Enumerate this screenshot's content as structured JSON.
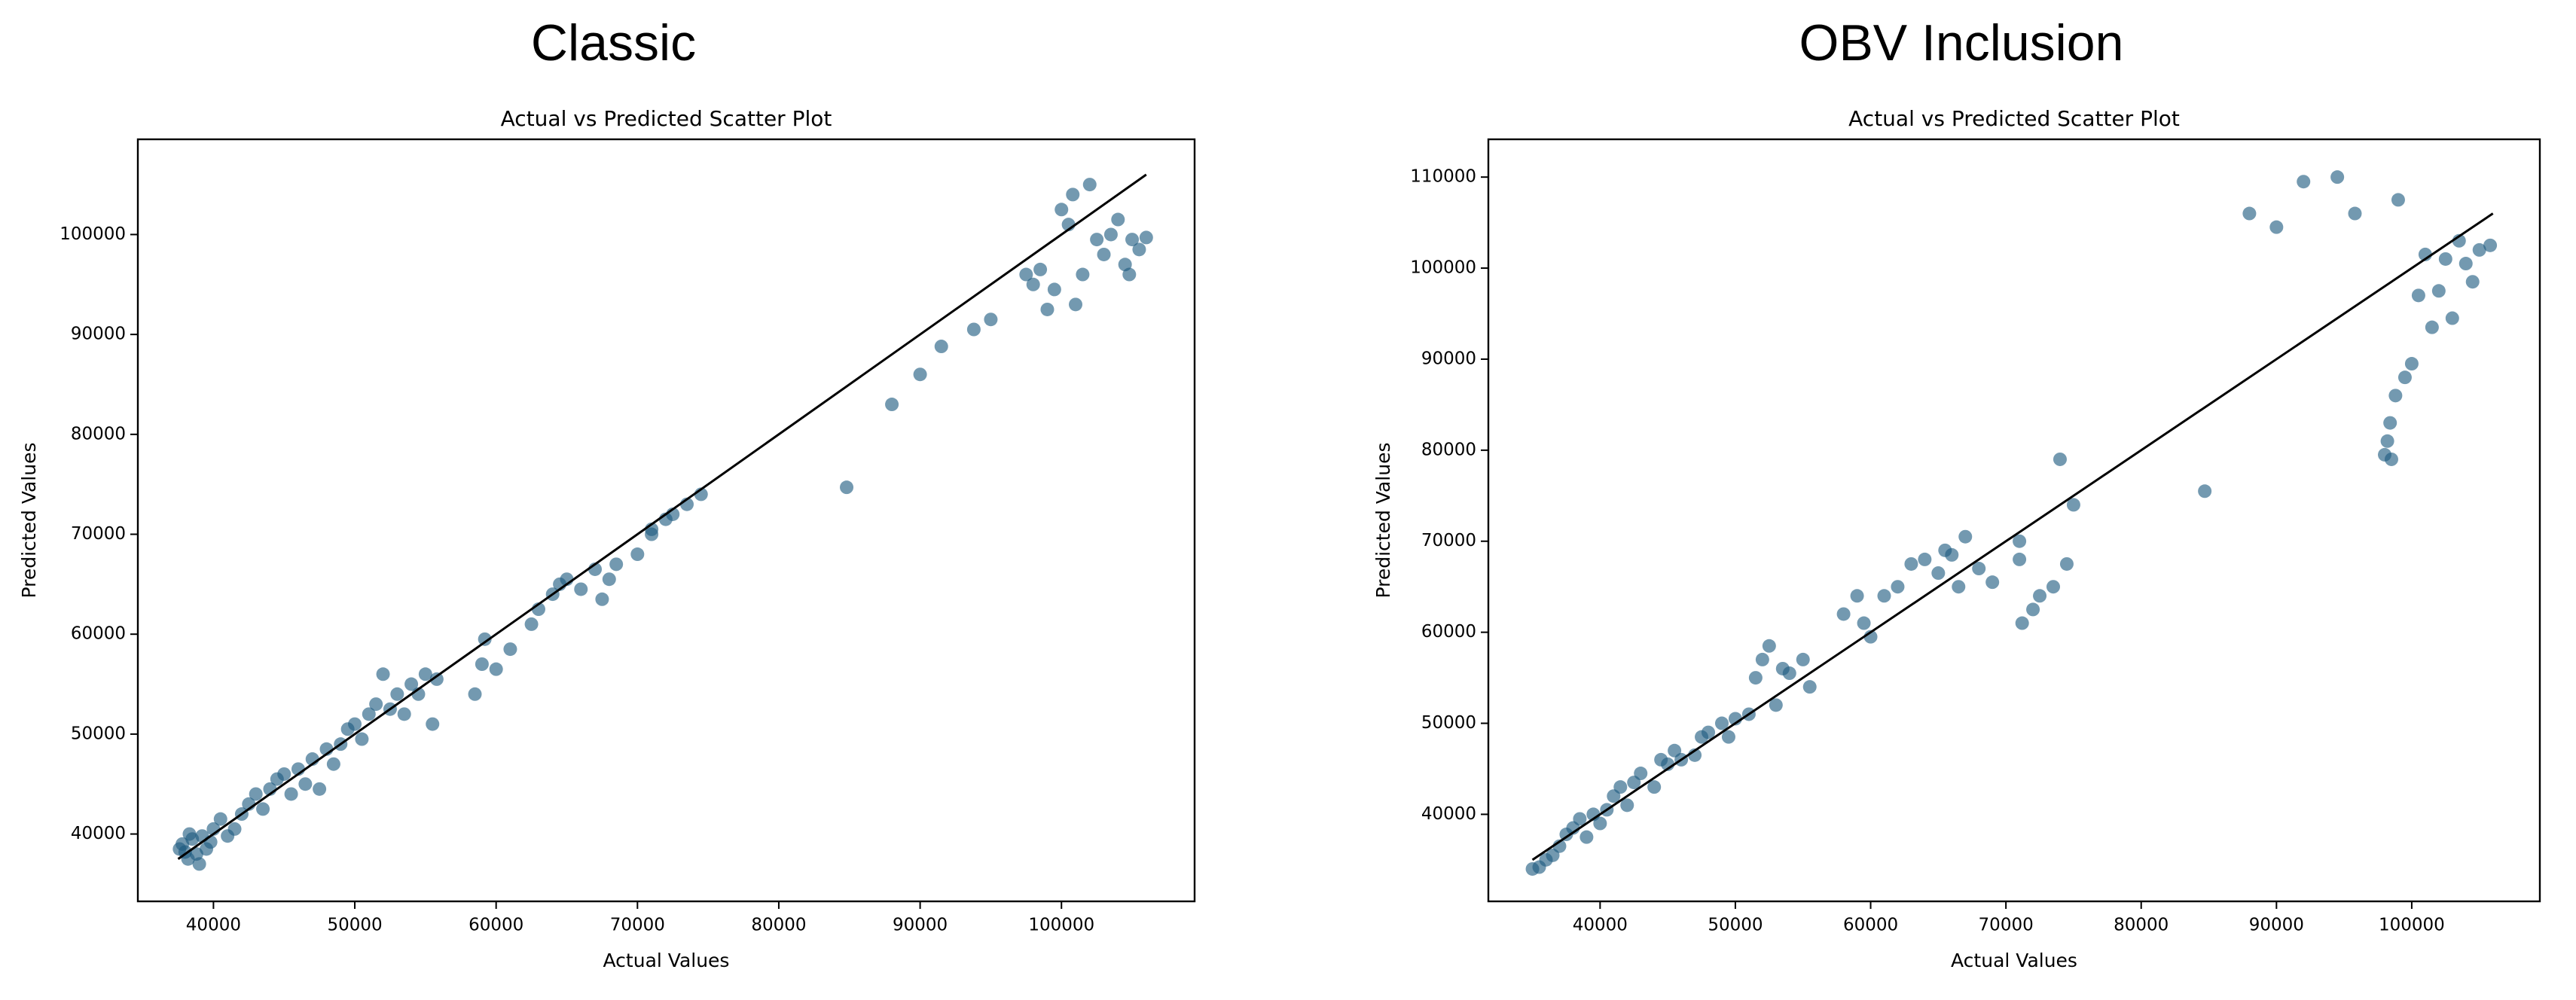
{
  "chart_data": [
    {
      "type": "scatter",
      "header": "Classic",
      "title": "Actual vs Predicted Scatter Plot",
      "xlabel": "Actual Values",
      "ylabel": "Predicted Values",
      "xlim": [
        34650,
        109420
      ],
      "ylim": [
        33260,
        109530
      ],
      "xticks": [
        40000,
        50000,
        60000,
        70000,
        80000,
        90000,
        100000
      ],
      "yticks": [
        40000,
        50000,
        60000,
        70000,
        80000,
        90000,
        100000
      ],
      "points": {
        "color": "#1d5b80",
        "x": [
          37800,
          38000,
          38200,
          38500,
          38800,
          39000,
          39200,
          39500,
          37600,
          38300,
          39800,
          40000,
          40500,
          41000,
          41500,
          42000,
          42500,
          43000,
          43500,
          44000,
          44500,
          45000,
          45500,
          46000,
          46500,
          47000,
          47500,
          48000,
          48500,
          49000,
          49500,
          50000,
          50500,
          51000,
          51500,
          52000,
          52500,
          53000,
          53500,
          54000,
          54500,
          55000,
          55500,
          55800,
          58500,
          59000,
          59200,
          60000,
          61000,
          62500,
          63000,
          64000,
          64500,
          65000,
          66000,
          67000,
          67500,
          68000,
          68500,
          70000,
          71000,
          71000,
          72000,
          72500,
          73500,
          74500,
          84800,
          88000,
          90000,
          91500,
          93800,
          95000,
          97500,
          98000,
          98500,
          99000,
          99500,
          100000,
          100500,
          100800,
          101000,
          101500,
          102000,
          102500,
          103000,
          103500,
          104000,
          104500,
          104800,
          105000,
          105500,
          106000
        ],
        "values": [
          39000,
          38200,
          37500,
          39500,
          38000,
          37000,
          39800,
          38500,
          38500,
          40000,
          39200,
          40500,
          41500,
          39800,
          40500,
          42000,
          43000,
          44000,
          42500,
          44500,
          45500,
          46000,
          44000,
          46500,
          45000,
          47500,
          44500,
          48500,
          47000,
          49000,
          50500,
          51000,
          49500,
          52000,
          53000,
          56000,
          52500,
          54000,
          52000,
          55000,
          54000,
          56000,
          51000,
          55500,
          54000,
          57000,
          59500,
          56500,
          58500,
          61000,
          62500,
          64000,
          65000,
          65500,
          64500,
          66500,
          63500,
          65500,
          67000,
          68000,
          70500,
          70000,
          71500,
          72000,
          73000,
          74000,
          74700,
          83000,
          86000,
          88800,
          90500,
          91500,
          96000,
          95000,
          96500,
          92500,
          94500,
          102500,
          101000,
          104000,
          93000,
          96000,
          105000,
          99500,
          98000,
          100000,
          101500,
          97000,
          96000,
          99500,
          98500,
          99700
        ]
      },
      "line": {
        "color": "#000000",
        "x": [
          37500,
          106000
        ],
        "values": [
          37500,
          106000
        ]
      }
    },
    {
      "type": "scatter",
      "header": "OBV Inclusion",
      "title": "Actual vs Predicted Scatter Plot",
      "xlabel": "Actual Values",
      "ylabel": "Predicted Values",
      "xlim": [
        31740,
        109470
      ],
      "ylim": [
        30440,
        114150
      ],
      "xticks": [
        40000,
        50000,
        60000,
        70000,
        80000,
        90000,
        100000
      ],
      "yticks": [
        40000,
        50000,
        60000,
        70000,
        80000,
        90000,
        100000,
        110000
      ],
      "points": {
        "color": "#1d5b80",
        "x": [
          35000,
          35500,
          36000,
          36500,
          37000,
          37500,
          38000,
          38500,
          39000,
          39500,
          40000,
          40500,
          41000,
          41500,
          42000,
          42500,
          43000,
          44000,
          44500,
          45000,
          45500,
          46000,
          47000,
          47500,
          48000,
          49000,
          49500,
          50000,
          51000,
          51500,
          52000,
          52500,
          53000,
          53500,
          54000,
          55000,
          55500,
          58000,
          59000,
          59500,
          60000,
          61000,
          62000,
          63000,
          64000,
          65000,
          65500,
          66000,
          66500,
          67000,
          68000,
          69000,
          71000,
          71000,
          71200,
          72000,
          72500,
          73500,
          74000,
          74500,
          75000,
          84700,
          88000,
          90000,
          92000,
          94500,
          95800,
          98000,
          98200,
          98400,
          98500,
          98800,
          99000,
          99500,
          100000,
          100500,
          101000,
          101500,
          102000,
          102500,
          103000,
          103500,
          104000,
          104500,
          105000,
          105800
        ],
        "values": [
          34000,
          34200,
          35000,
          35500,
          36500,
          37800,
          38500,
          39500,
          37500,
          40000,
          39000,
          40500,
          42000,
          43000,
          41000,
          43500,
          44500,
          43000,
          46000,
          45500,
          47000,
          46000,
          46500,
          48500,
          49000,
          50000,
          48500,
          50500,
          51000,
          55000,
          57000,
          58500,
          52000,
          56000,
          55500,
          57000,
          54000,
          62000,
          64000,
          61000,
          59500,
          64000,
          65000,
          67500,
          68000,
          66500,
          69000,
          68500,
          65000,
          70500,
          67000,
          65500,
          70000,
          68000,
          61000,
          62500,
          64000,
          65000,
          79000,
          67500,
          74000,
          75500,
          106000,
          104500,
          109500,
          110000,
          106000,
          79500,
          81000,
          83000,
          79000,
          86000,
          107500,
          88000,
          89500,
          97000,
          101500,
          93500,
          97500,
          101000,
          94500,
          103000,
          100500,
          98500,
          102000,
          102500
        ]
      },
      "line": {
        "color": "#000000",
        "x": [
          35000,
          106000
        ],
        "values": [
          35000,
          106000
        ]
      }
    }
  ]
}
